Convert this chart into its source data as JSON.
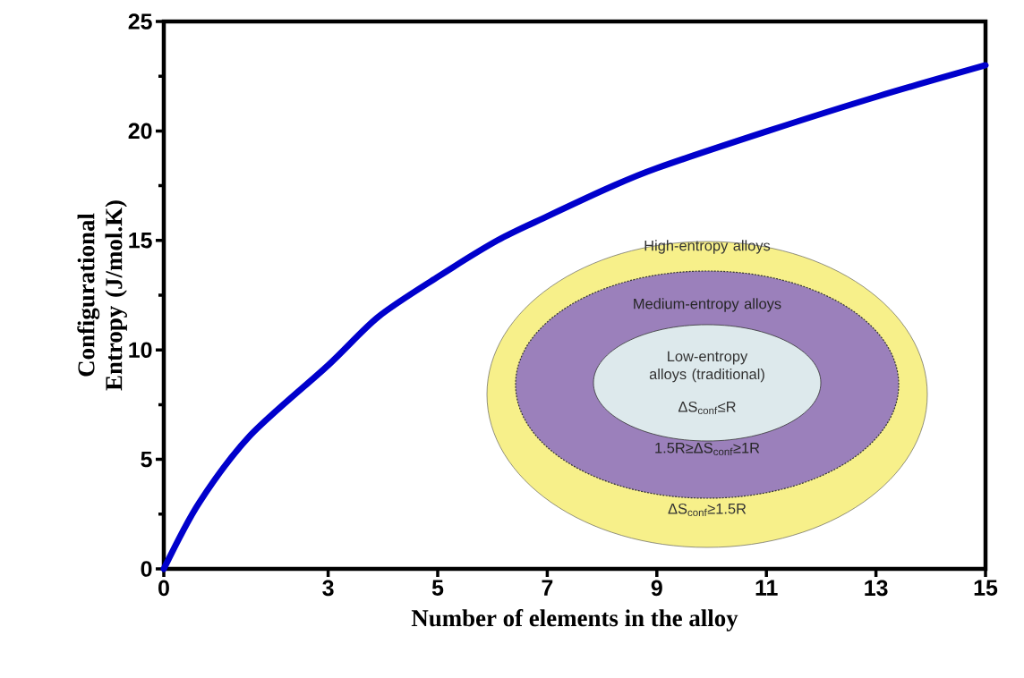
{
  "chart_data": {
    "type": "line",
    "xlabel": "Number of elements in the alloy",
    "ylabel": "Configurational Entropy (J/mol.K)",
    "x": [
      0,
      0.64,
      1.58,
      3,
      3.91,
      4.98,
      6.09,
      7,
      8.12,
      9,
      11.03,
      13.06,
      15
    ],
    "series": [
      {
        "color": "#0000cc",
        "values": [
          0,
          3.0,
          6.1,
          9.3,
          11.5,
          13.3,
          15.0,
          16.1,
          17.4,
          18.3,
          20.0,
          21.6,
          23.0
        ]
      }
    ],
    "xlim": [
      0,
      15
    ],
    "ylim": [
      0,
      25
    ],
    "xticks": [
      0,
      3,
      5,
      7,
      9,
      11,
      13,
      15
    ],
    "yticks": [
      0,
      5,
      10,
      15,
      20,
      25
    ],
    "grid": false,
    "marker": "none",
    "line_style": "solid",
    "annotations": [
      "High-entropy alloys",
      "Medium-entropy alloys",
      "Low-entropy alloys (traditional)",
      "ΔS$_{conf}$≤R",
      "1.5R≥ΔS$_{conf}$≥1R",
      "ΔS$_{conf}$≥1.5R"
    ]
  }
}
